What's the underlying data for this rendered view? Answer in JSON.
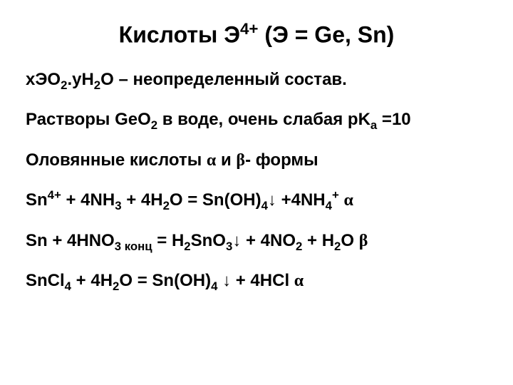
{
  "title_parts": {
    "t1": "Кислоты Э",
    "t2": "4+",
    "t3": " (Э = Ge, Sn)"
  },
  "lines": {
    "l1": {
      "a": "xЭО",
      "b": "2",
      "c": ".yH",
      "d": "2",
      "e": "O – неопределенный состав."
    },
    "l2": {
      "a": "Растворы GeO",
      "b": "2",
      "c": " в воде, очень слабая pK",
      "d": "a",
      "e": " =10"
    },
    "l3": {
      "a": "Оловянные кислоты ",
      "alpha": "α",
      "b": " и ",
      "beta": "β",
      "c": "- формы"
    },
    "l4": {
      "a": "Sn",
      "b": "4+",
      "c": " + 4NH",
      "d": "3",
      "e": " + 4H",
      "f": "2",
      "g": "O = Sn(OH)",
      "h": "4",
      "i": "↓ +4NH",
      "j": "4",
      "k": "+",
      "l": " ",
      "alpha": "α"
    },
    "l5": {
      "a": "Sn + 4HNO",
      "b": "3 конц",
      "c": " = H",
      "d": "2",
      "e": "SnO",
      "f": "3",
      "g": "↓ + 4NO",
      "h": "2",
      "i": " + H",
      "j": "2",
      "k": "O ",
      "beta": "β"
    },
    "l6": {
      "a": "SnCl",
      "b": "4",
      "c": " + 4H",
      "d": "2",
      "e": "O =  Sn(OH)",
      "f": "4",
      "g": " ↓ + 4HCl ",
      "alpha": "α"
    }
  }
}
